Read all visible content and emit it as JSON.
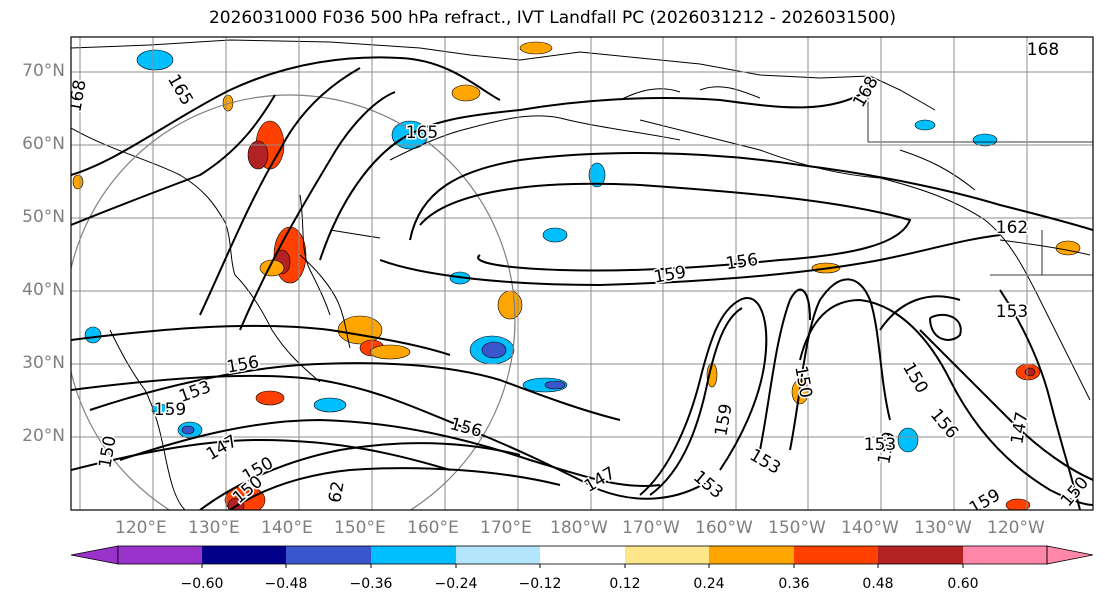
{
  "title": "2026031000 F036 500 hPa refract., IVT Landfall PC (2026031212 - 2026031500)",
  "map": {
    "lat_labels": [
      "70°N",
      "60°N",
      "50°N",
      "40°N",
      "30°N",
      "20°N"
    ],
    "lon_labels": [
      "120°E",
      "130°E",
      "140°E",
      "150°E",
      "160°E",
      "170°E",
      "180°W",
      "170°W",
      "160°W",
      "150°W",
      "140°W",
      "130°W",
      "120°W"
    ],
    "contour_labels": [
      "165",
      "168",
      "165",
      "168",
      "168",
      "162",
      "159",
      "156",
      "156",
      "153",
      "153",
      "150",
      "147",
      "150",
      "62",
      "156",
      "147",
      "153",
      "159",
      "153",
      "150",
      "159",
      "150",
      "156",
      "147",
      "159",
      "150",
      "150",
      "159",
      "153"
    ],
    "colors": {
      "contour": "#000000",
      "grid": "#8c8c8c",
      "circle": "#808080",
      "frame": "#000000",
      "tick_label": "#7f7f7f"
    }
  },
  "colorbar": {
    "colors": [
      "#9933cc",
      "#00008b",
      "#3a56cc",
      "#00bfff",
      "#b3e5fc",
      "#ffffff",
      "#fde68a",
      "#ffa500",
      "#ff4000",
      "#b22222",
      "#ff88aa"
    ],
    "tick_labels": [
      "−0.60",
      "−0.48",
      "−0.36",
      "−0.24",
      "−0.12",
      "0.12",
      "0.24",
      "0.36",
      "0.48",
      "0.60"
    ],
    "extend": "both"
  }
}
